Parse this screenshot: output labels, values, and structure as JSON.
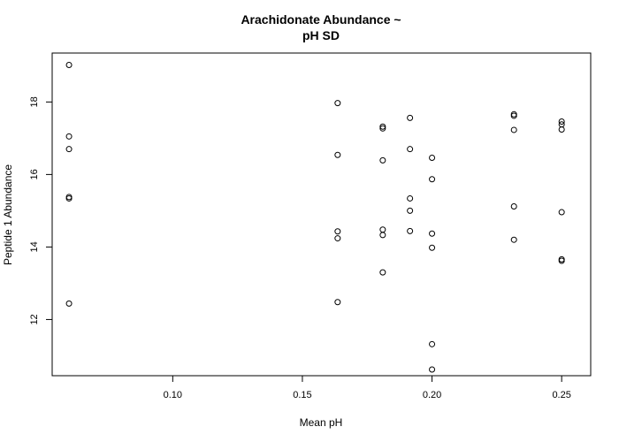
{
  "chart_data": {
    "type": "scatter",
    "title_lines": [
      "Arachidonate Abundance ~",
      "pH SD"
    ],
    "xlabel": "Mean pH",
    "ylabel": "Peptide 1 Abundance",
    "xlim": [
      0.0535,
      0.2612
    ],
    "ylim": [
      10.45,
      19.35
    ],
    "xticks": [
      0.1,
      0.15,
      0.2,
      0.25
    ],
    "xtick_labels": [
      "0.10",
      "0.15",
      "0.20",
      "0.25"
    ],
    "yticks": [
      12,
      14,
      16,
      18
    ],
    "ytick_labels": [
      "12",
      "14",
      "16",
      "18"
    ],
    "grid": false,
    "legend": "none",
    "marker": "open-circle",
    "points": [
      {
        "x": 0.06,
        "y": 19.02
      },
      {
        "x": 0.06,
        "y": 17.05
      },
      {
        "x": 0.06,
        "y": 16.7
      },
      {
        "x": 0.06,
        "y": 15.38
      },
      {
        "x": 0.06,
        "y": 15.34
      },
      {
        "x": 0.06,
        "y": 12.44
      },
      {
        "x": 0.1636,
        "y": 17.97
      },
      {
        "x": 0.1636,
        "y": 16.54
      },
      {
        "x": 0.1636,
        "y": 14.43
      },
      {
        "x": 0.1636,
        "y": 14.24
      },
      {
        "x": 0.1636,
        "y": 12.48
      },
      {
        "x": 0.181,
        "y": 17.32
      },
      {
        "x": 0.181,
        "y": 17.27
      },
      {
        "x": 0.181,
        "y": 16.39
      },
      {
        "x": 0.181,
        "y": 14.48
      },
      {
        "x": 0.181,
        "y": 14.33
      },
      {
        "x": 0.181,
        "y": 13.3
      },
      {
        "x": 0.1915,
        "y": 17.56
      },
      {
        "x": 0.1915,
        "y": 16.7
      },
      {
        "x": 0.1915,
        "y": 15.34
      },
      {
        "x": 0.1915,
        "y": 15.0
      },
      {
        "x": 0.1915,
        "y": 14.44
      },
      {
        "x": 0.2,
        "y": 16.46
      },
      {
        "x": 0.2,
        "y": 15.87
      },
      {
        "x": 0.2,
        "y": 14.37
      },
      {
        "x": 0.2,
        "y": 13.98
      },
      {
        "x": 0.2,
        "y": 11.32
      },
      {
        "x": 0.2,
        "y": 10.62
      },
      {
        "x": 0.2316,
        "y": 17.66
      },
      {
        "x": 0.2316,
        "y": 17.62
      },
      {
        "x": 0.2316,
        "y": 17.23
      },
      {
        "x": 0.2316,
        "y": 15.12
      },
      {
        "x": 0.2316,
        "y": 14.2
      },
      {
        "x": 0.25,
        "y": 17.46
      },
      {
        "x": 0.25,
        "y": 17.38
      },
      {
        "x": 0.25,
        "y": 17.24
      },
      {
        "x": 0.25,
        "y": 14.96
      },
      {
        "x": 0.25,
        "y": 13.66
      },
      {
        "x": 0.25,
        "y": 13.62
      }
    ]
  }
}
